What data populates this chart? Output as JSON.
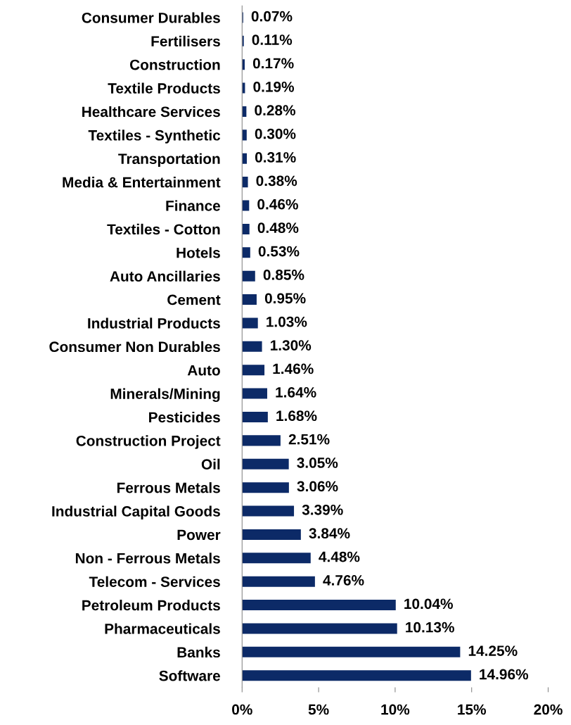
{
  "chart_data": {
    "type": "bar",
    "orientation": "horizontal",
    "categories": [
      "Consumer Durables",
      "Fertilisers",
      "Construction",
      "Textile Products",
      "Healthcare Services",
      "Textiles - Synthetic",
      "Transportation",
      "Media & Entertainment",
      "Finance",
      "Textiles - Cotton",
      "Hotels",
      "Auto Ancillaries",
      "Cement",
      "Industrial Products",
      "Consumer Non Durables",
      "Auto",
      "Minerals/Mining",
      "Pesticides",
      "Construction Project",
      "Oil",
      "Ferrous Metals",
      "Industrial Capital Goods",
      "Power",
      "Non - Ferrous Metals",
      "Telecom - Services",
      "Petroleum Products",
      "Pharmaceuticals",
      "Banks",
      "Software"
    ],
    "values": [
      0.07,
      0.11,
      0.17,
      0.19,
      0.28,
      0.3,
      0.31,
      0.38,
      0.46,
      0.48,
      0.53,
      0.85,
      0.95,
      1.03,
      1.3,
      1.46,
      1.64,
      1.68,
      2.51,
      3.05,
      3.06,
      3.39,
      3.84,
      4.48,
      4.76,
      10.04,
      10.13,
      14.25,
      14.96
    ],
    "value_labels": [
      "0.07%",
      "0.11%",
      "0.17%",
      "0.19%",
      "0.28%",
      "0.30%",
      "0.31%",
      "0.38%",
      "0.46%",
      "0.48%",
      "0.53%",
      "0.85%",
      "0.95%",
      "1.03%",
      "1.30%",
      "1.46%",
      "1.64%",
      "1.68%",
      "2.51%",
      "3.05%",
      "3.06%",
      "3.39%",
      "3.84%",
      "4.48%",
      "4.76%",
      "10.04%",
      "10.13%",
      "14.25%",
      "14.96%"
    ],
    "color": "#0c2a67",
    "xlim": [
      0,
      20
    ],
    "xticks": [
      {
        "value": 0,
        "label": "0%"
      },
      {
        "value": 5,
        "label": "5%"
      },
      {
        "value": 10,
        "label": "10%"
      },
      {
        "value": 15,
        "label": "15%"
      },
      {
        "value": 20,
        "label": "20%"
      }
    ],
    "grid": false,
    "legend": false
  }
}
